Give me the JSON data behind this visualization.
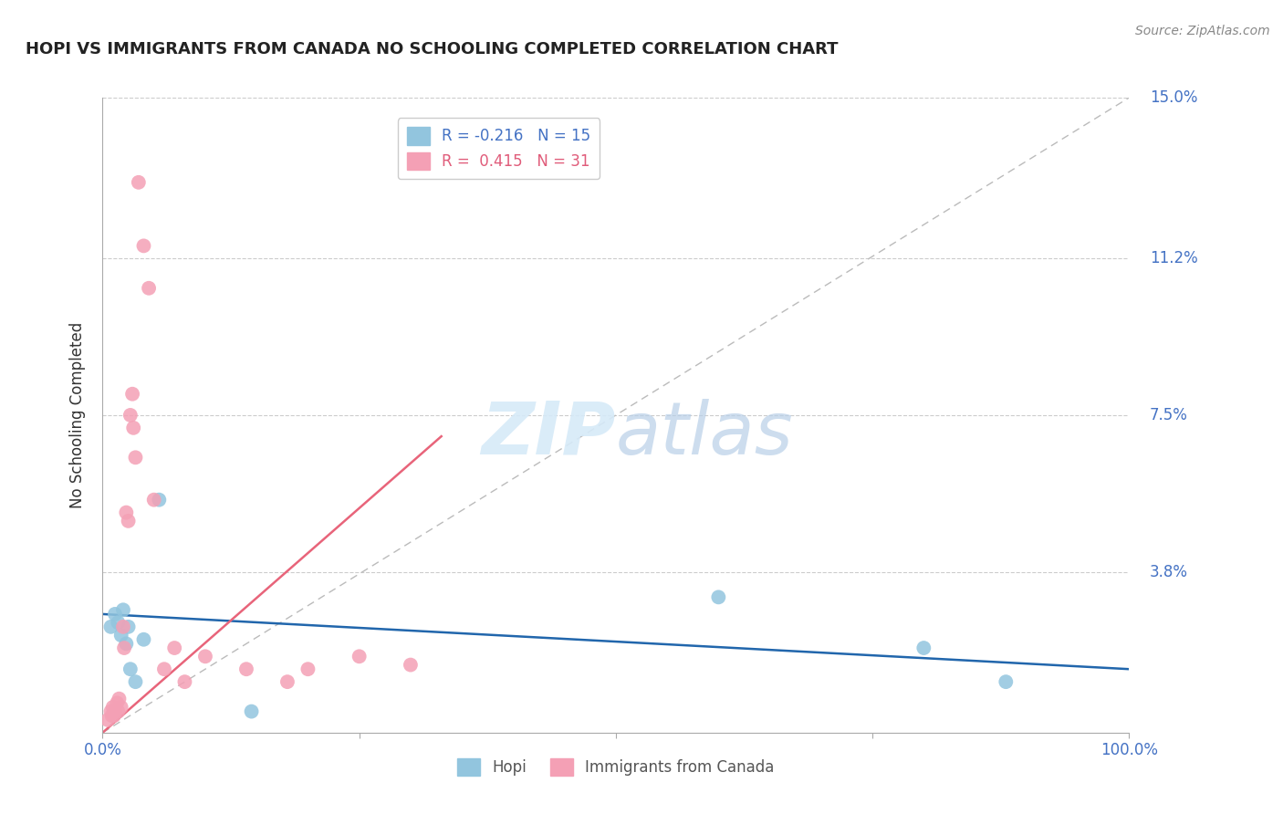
{
  "title": "HOPI VS IMMIGRANTS FROM CANADA NO SCHOOLING COMPLETED CORRELATION CHART",
  "source": "Source: ZipAtlas.com",
  "ylabel": "No Schooling Completed",
  "xlim": [
    0,
    100
  ],
  "ylim": [
    0,
    15.0
  ],
  "yticks": [
    0,
    3.8,
    7.5,
    11.2,
    15.0
  ],
  "legend_R_hopi": "-0.216",
  "legend_N_hopi": "15",
  "legend_R_canada": "0.415",
  "legend_N_canada": "31",
  "hopi_color": "#92c5de",
  "canada_color": "#f4a0b5",
  "hopi_line_color": "#2166ac",
  "canada_line_color": "#e8647a",
  "diagonal_color": "#bbbbbb",
  "title_color": "#222222",
  "tick_label_color": "#4472c4",
  "watermark_color": "#d6eaf8",
  "hopi_x": [
    0.8,
    1.2,
    1.5,
    1.8,
    2.0,
    2.3,
    2.5,
    2.7,
    3.2,
    4.0,
    5.5,
    14.5,
    60.0,
    80.0,
    88.0
  ],
  "hopi_y": [
    2.5,
    2.8,
    2.6,
    2.3,
    2.9,
    2.1,
    2.5,
    1.5,
    1.2,
    2.2,
    5.5,
    0.5,
    3.2,
    2.0,
    1.2
  ],
  "canada_x": [
    0.5,
    0.8,
    0.9,
    1.0,
    1.1,
    1.2,
    1.4,
    1.5,
    1.6,
    1.8,
    2.0,
    2.1,
    2.3,
    2.5,
    2.7,
    2.9,
    3.0,
    3.2,
    3.5,
    4.0,
    4.5,
    5.0,
    6.0,
    7.0,
    8.0,
    10.0,
    14.0,
    18.0,
    20.0,
    25.0,
    30.0
  ],
  "canada_y": [
    0.3,
    0.5,
    0.4,
    0.6,
    0.4,
    0.5,
    0.7,
    0.5,
    0.8,
    0.6,
    2.5,
    2.0,
    5.2,
    5.0,
    7.5,
    8.0,
    7.2,
    6.5,
    13.0,
    11.5,
    10.5,
    5.5,
    1.5,
    2.0,
    1.2,
    1.8,
    1.5,
    1.2,
    1.5,
    1.8,
    1.6
  ],
  "hopi_trend_x": [
    0,
    100
  ],
  "hopi_trend_y": [
    2.8,
    1.5
  ],
  "canada_trend_x": [
    0,
    33
  ],
  "canada_trend_y": [
    0.0,
    7.0
  ]
}
